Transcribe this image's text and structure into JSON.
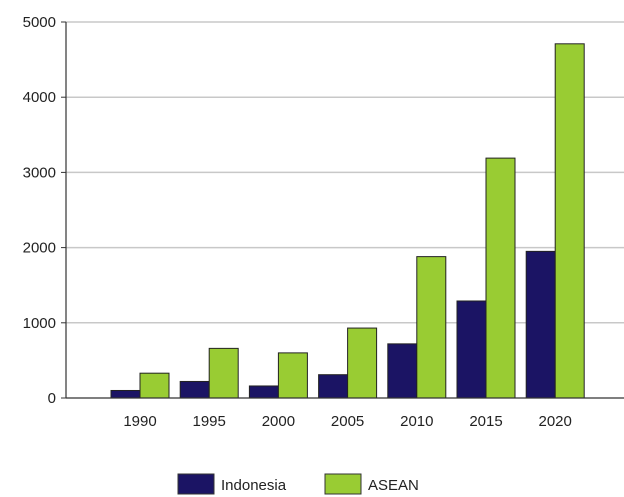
{
  "colors": {
    "indonesia": "#1b1464",
    "asean": "#99cc33",
    "grid": "#c8c8c8",
    "axis": "#333333"
  },
  "chart_data": {
    "type": "bar",
    "categories": [
      "1990",
      "1995",
      "2000",
      "2005",
      "2010",
      "2015",
      "2020"
    ],
    "series": [
      {
        "name": "Indonesia",
        "values": [
          100,
          220,
          160,
          310,
          720,
          1290,
          1950
        ]
      },
      {
        "name": "ASEAN",
        "values": [
          330,
          660,
          600,
          930,
          1880,
          3190,
          4710
        ]
      }
    ],
    "ylim": [
      0,
      5000
    ],
    "yticks": [
      0,
      1000,
      2000,
      3000,
      4000,
      5000
    ],
    "title": "",
    "xlabel": "",
    "ylabel": "",
    "grid": "horizontal",
    "legend_position": "bottom-center"
  }
}
